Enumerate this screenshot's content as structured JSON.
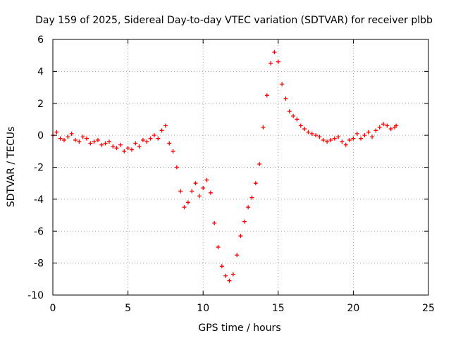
{
  "chart_data": {
    "type": "scatter",
    "title": "Day 159 of 2025, Sidereal Day-to-day VTEC variation (SDTVAR) for receiver plbb",
    "xlabel": "GPS time / hours",
    "ylabel": "SDTVAR / TECUs",
    "xlim": [
      0,
      25
    ],
    "ylim": [
      -10,
      6
    ],
    "xticks": [
      0,
      5,
      10,
      15,
      20,
      25
    ],
    "yticks": [
      -10,
      -8,
      -6,
      -4,
      -2,
      0,
      2,
      4,
      6
    ],
    "grid": true,
    "marker": "+",
    "color": "#ff0000",
    "series": [
      {
        "name": "SDTVAR",
        "x": [
          0.0,
          0.25,
          0.5,
          0.75,
          1.0,
          1.25,
          1.5,
          1.75,
          2.0,
          2.25,
          2.5,
          2.75,
          3.0,
          3.25,
          3.5,
          3.75,
          4.0,
          4.25,
          4.5,
          4.75,
          5.0,
          5.25,
          5.5,
          5.75,
          6.0,
          6.25,
          6.5,
          6.75,
          7.0,
          7.25,
          7.5,
          7.75,
          8.0,
          8.25,
          8.5,
          8.75,
          9.0,
          9.25,
          9.5,
          9.75,
          10.0,
          10.25,
          10.5,
          10.75,
          11.0,
          11.25,
          11.5,
          11.75,
          12.0,
          12.25,
          12.5,
          12.75,
          13.0,
          13.25,
          13.5,
          13.75,
          14.0,
          14.25,
          14.5,
          14.75,
          15.0,
          15.25,
          15.5,
          15.75,
          16.0,
          16.25,
          16.5,
          16.75,
          17.0,
          17.25,
          17.5,
          17.75,
          18.0,
          18.25,
          18.5,
          18.75,
          19.0,
          19.25,
          19.5,
          19.75,
          20.0,
          20.25,
          20.5,
          20.75,
          21.0,
          21.25,
          21.5,
          21.75,
          22.0,
          22.25,
          22.5,
          22.75,
          22.85
        ],
        "y": [
          0.0,
          0.2,
          -0.2,
          -0.3,
          -0.1,
          0.1,
          -0.3,
          -0.4,
          -0.1,
          -0.2,
          -0.5,
          -0.4,
          -0.3,
          -0.6,
          -0.5,
          -0.4,
          -0.7,
          -0.8,
          -0.6,
          -1.0,
          -0.8,
          -0.9,
          -0.5,
          -0.7,
          -0.3,
          -0.4,
          -0.2,
          0.0,
          -0.2,
          0.3,
          0.6,
          -0.5,
          -1.0,
          -2.0,
          -3.5,
          -4.5,
          -4.2,
          -3.5,
          -3.0,
          -3.8,
          -3.3,
          -2.8,
          -3.6,
          -5.5,
          -7.0,
          -8.2,
          -8.8,
          -9.1,
          -8.7,
          -7.5,
          -6.3,
          -5.4,
          -4.5,
          -3.9,
          -3.0,
          -1.8,
          0.5,
          2.5,
          4.5,
          5.2,
          4.6,
          3.2,
          2.3,
          1.5,
          1.2,
          1.0,
          0.6,
          0.4,
          0.2,
          0.1,
          0.0,
          -0.1,
          -0.3,
          -0.4,
          -0.3,
          -0.2,
          -0.1,
          -0.4,
          -0.6,
          -0.3,
          -0.2,
          0.1,
          -0.2,
          0.0,
          0.2,
          -0.1,
          0.3,
          0.5,
          0.7,
          0.6,
          0.4,
          0.5,
          0.6
        ]
      }
    ]
  }
}
